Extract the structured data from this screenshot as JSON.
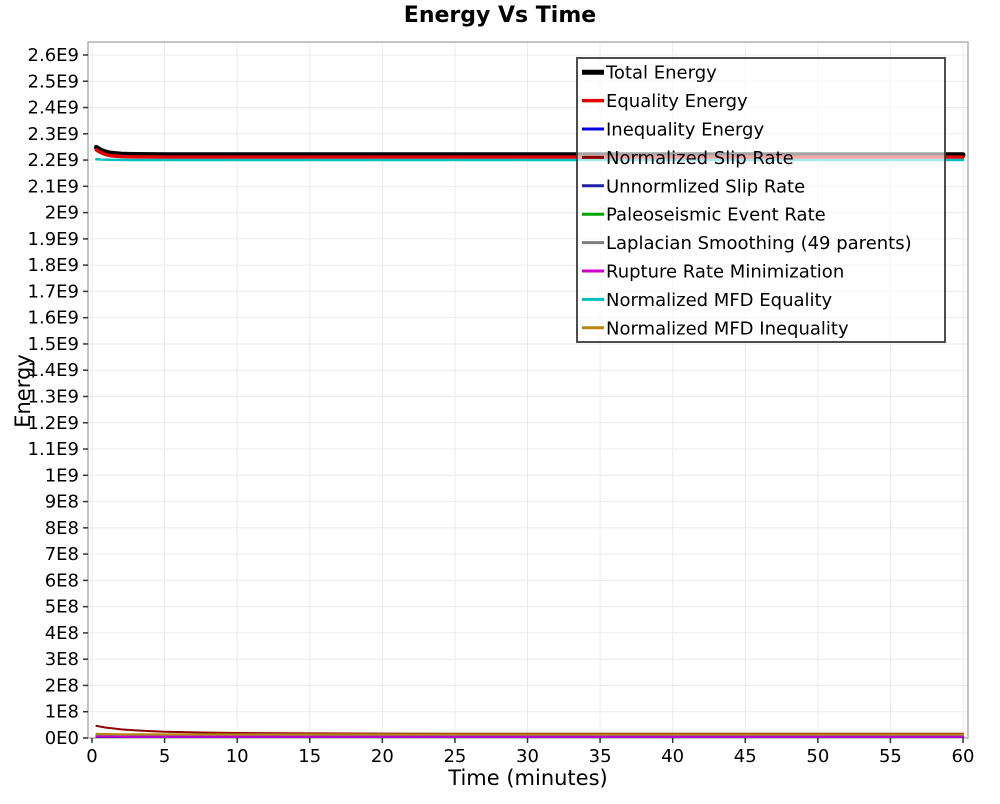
{
  "chart_data": {
    "type": "line",
    "title": "Energy Vs Time",
    "xlabel": "Time (minutes)",
    "ylabel": "Energy",
    "xlim": [
      0,
      60
    ],
    "ylim": [
      0,
      2600000000.0
    ],
    "grid": true,
    "legend_position": "top-right-inside",
    "x_ticks": [
      0,
      5,
      10,
      15,
      20,
      25,
      30,
      35,
      40,
      45,
      50,
      55,
      60
    ],
    "y_tick_labels": [
      "0E0",
      "1E8",
      "2E8",
      "3E8",
      "4E8",
      "5E8",
      "6E8",
      "7E8",
      "8E8",
      "9E8",
      "1E9",
      "1.1E9",
      "1.2E9",
      "1.3E9",
      "1.4E9",
      "1.5E9",
      "1.6E9",
      "1.7E9",
      "1.8E9",
      "1.9E9",
      "2E9",
      "2.1E9",
      "2.2E9",
      "2.3E9",
      "2.4E9",
      "2.5E9",
      "2.6E9"
    ],
    "y_tick_step": 100000000.0,
    "x": [
      0.3,
      0.6,
      0.9,
      1.2,
      1.5,
      2,
      2.5,
      3,
      4,
      5,
      7.5,
      10,
      15,
      20,
      25,
      30,
      35,
      40,
      45,
      50,
      55,
      60
    ],
    "series": [
      {
        "name": "Total Energy",
        "color": "#000000",
        "width": 5,
        "values": [
          2248000000.0,
          2238000000.0,
          2231000000.0,
          2227000000.0,
          2225000000.0,
          2222800000.0,
          2221800000.0,
          2221200000.0,
          2220600000.0,
          2220300000.0,
          2220100000.0,
          2220000000.0,
          2220000000.0,
          2220000000.0,
          2220000000.0,
          2220000000.0,
          2220000000.0,
          2220000000.0,
          2220000000.0,
          2220000000.0,
          2220000000.0,
          2220000000.0
        ]
      },
      {
        "name": "Equality Energy",
        "color": "#e60000",
        "width": 3.5,
        "values": [
          2238500000.0,
          2228500000.0,
          2221500000.0,
          2217500000.0,
          2215500000.0,
          2213500000.0,
          2212600000.0,
          2212100000.0,
          2211600000.0,
          2211300000.0,
          2211100000.0,
          2211000000.0,
          2211000000.0,
          2211000000.0,
          2211000000.0,
          2211000000.0,
          2211000000.0,
          2211000000.0,
          2211000000.0,
          2211000000.0,
          2211000000.0,
          2211000000.0
        ]
      },
      {
        "name": "Inequality Energy",
        "color": "#0000e6",
        "width": 2,
        "values": [
          9000000.0,
          7000000.0,
          6000000.0,
          5000000.0,
          4500000.0,
          4000000.0,
          3500000.0,
          3200000.0,
          3000000.0,
          2800000.0,
          2500000.0,
          2300000.0,
          2200000.0,
          2100000.0,
          2000000.0,
          2000000.0,
          2000000.0,
          2000000.0,
          2000000.0,
          2000000.0,
          2000000.0,
          2000000.0
        ]
      },
      {
        "name": "Normalized Slip Rate",
        "color": "#8b0000",
        "width": 2,
        "values": [
          46000000.0,
          43000000.0,
          40000000.0,
          38000000.0,
          36000000.0,
          33000000.0,
          31000000.0,
          29000000.0,
          26000000.0,
          24000000.0,
          21000000.0,
          19000000.0,
          17500000.0,
          16800000.0,
          16400000.0,
          16200000.0,
          16000000.0,
          16000000.0,
          16000000.0,
          16000000.0,
          16000000.0,
          16000000.0
        ]
      },
      {
        "name": "Unnormlized Slip Rate",
        "color": "#2222aa",
        "width": 2,
        "values": [
          3500000.0,
          3400000.0,
          3300000.0,
          3200000.0,
          3100000.0,
          3000000.0,
          3000000.0,
          3000000.0,
          3000000.0,
          3000000.0,
          3000000.0,
          3000000.0,
          3000000.0,
          3000000.0,
          3000000.0,
          3000000.0,
          3000000.0,
          3000000.0,
          3000000.0,
          3000000.0,
          3000000.0,
          3000000.0
        ]
      },
      {
        "name": "Paleoseismic Event Rate",
        "color": "#00a500",
        "width": 2,
        "values": [
          13500000.0,
          13200000.0,
          13000000.0,
          12800000.0,
          12600000.0,
          12400000.0,
          12300000.0,
          12200000.0,
          12100000.0,
          12000000.0,
          12000000.0,
          12000000.0,
          12000000.0,
          12000000.0,
          12000000.0,
          12000000.0,
          12000000.0,
          12000000.0,
          12000000.0,
          12000000.0,
          12000000.0,
          12000000.0
        ]
      },
      {
        "name": "Laplacian Smoothing (49 parents)",
        "color": "#7f7f7f",
        "width": 2,
        "values": [
          10500000.0,
          10400000.0,
          10300000.0,
          10200000.0,
          10100000.0,
          10000000.0,
          10000000.0,
          10000000.0,
          10000000.0,
          10000000.0,
          10000000.0,
          10000000.0,
          10000000.0,
          10000000.0,
          10000000.0,
          10000000.0,
          10000000.0,
          10000000.0,
          10000000.0,
          10000000.0,
          10000000.0,
          10000000.0
        ]
      },
      {
        "name": "Rupture Rate Minimization",
        "color": "#cc00cc",
        "width": 2,
        "values": [
          5500000.0,
          5400000.0,
          5300000.0,
          5200000.0,
          5100000.0,
          5000000.0,
          5000000.0,
          5000000.0,
          5000000.0,
          5000000.0,
          5000000.0,
          5000000.0,
          5000000.0,
          5000000.0,
          5000000.0,
          5000000.0,
          5000000.0,
          5000000.0,
          5000000.0,
          5000000.0,
          5000000.0,
          5000000.0
        ]
      },
      {
        "name": "Normalized MFD Equality",
        "color": "#00bfbf",
        "width": 2.5,
        "values": [
          2203000000.0,
          2202000000.0,
          2201500000.0,
          2201000000.0,
          2200800000.0,
          2200500000.0,
          2200300000.0,
          2200200000.0,
          2200100000.0,
          2200000000.0,
          2200000000.0,
          2200000000.0,
          2200000000.0,
          2200000000.0,
          2200000000.0,
          2200000000.0,
          2200000000.0,
          2200000000.0,
          2200000000.0,
          2200000000.0,
          2200000000.0,
          2200000000.0
        ]
      },
      {
        "name": "Normalized MFD Inequality",
        "color": "#b8860b",
        "width": 2,
        "values": [
          16000000.0,
          15500000.0,
          15000000.0,
          14800000.0,
          14600000.0,
          14400000.0,
          14300000.0,
          14200000.0,
          14100000.0,
          14000000.0,
          14000000.0,
          14000000.0,
          14000000.0,
          14000000.0,
          14000000.0,
          14000000.0,
          14000000.0,
          14000000.0,
          14000000.0,
          14000000.0,
          14000000.0,
          14000000.0
        ]
      }
    ],
    "style": {
      "grid_color": "#ebebeb",
      "border_color": "#b0b0b0",
      "tick_color": "#333333",
      "legend_border_color": "#3a3a3a",
      "legend_bg_opacity": 0.65
    }
  }
}
